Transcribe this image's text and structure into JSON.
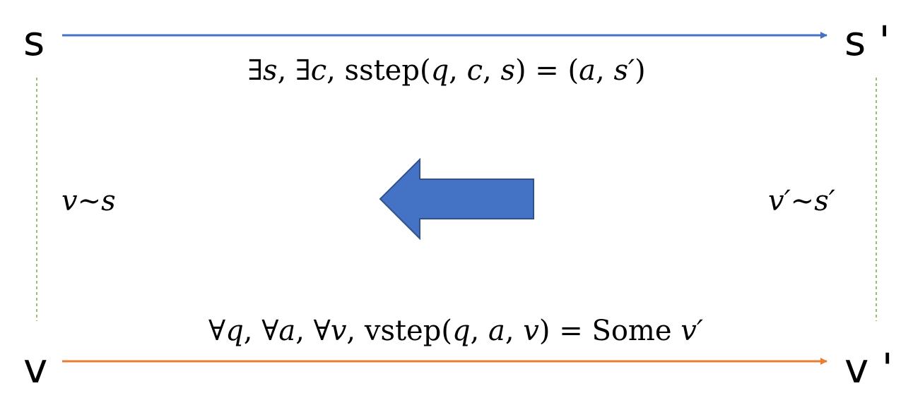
{
  "nodes": {
    "s": "s",
    "s_prime": "s '",
    "v": "v",
    "v_prime": "v '"
  },
  "edges": {
    "top": {
      "parts": [
        "∃",
        "s",
        ", ∃",
        "c",
        ", sstep(",
        "q",
        ", ",
        "c",
        ", ",
        "s",
        ") = (",
        "a",
        ", ",
        "s′",
        ")"
      ],
      "color": "#4472C4"
    },
    "bottom": {
      "parts": [
        "∀",
        "q",
        ", ∀",
        "a",
        ", ∀",
        "v",
        ", vstep(",
        "q",
        ", ",
        "a",
        ", ",
        "v",
        ") = Some ",
        "v′"
      ],
      "color": "#ED7D31"
    }
  },
  "relations": {
    "left": "v∼s",
    "right": "v′∼s′",
    "color": "#70AD47"
  },
  "center_arrow": {
    "direction": "left",
    "color": "#4472C4",
    "border": "#2F528F"
  }
}
